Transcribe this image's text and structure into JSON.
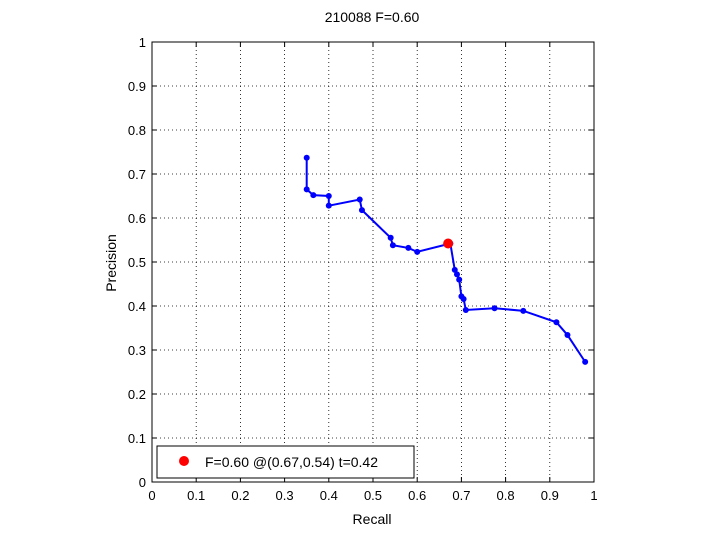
{
  "chart_data": {
    "type": "line",
    "title": "210088 F=0.60",
    "xlabel": "Recall",
    "ylabel": "Precision",
    "xlim": [
      0,
      1
    ],
    "ylim": [
      0,
      1
    ],
    "xticks": [
      "0",
      "0.1",
      "0.2",
      "0.3",
      "0.4",
      "0.5",
      "0.6",
      "0.7",
      "0.8",
      "0.9",
      "1"
    ],
    "yticks": [
      "0",
      "0.1",
      "0.2",
      "0.3",
      "0.4",
      "0.5",
      "0.6",
      "0.7",
      "0.8",
      "0.9",
      "1"
    ],
    "grid": true,
    "legend_position": "bottom-left",
    "series": [
      {
        "color": "#0000ff",
        "x": [
          0.35,
          0.35,
          0.365,
          0.4,
          0.4,
          0.47,
          0.475,
          0.54,
          0.545,
          0.58,
          0.6,
          0.675,
          0.685,
          0.69,
          0.695,
          0.7,
          0.705,
          0.71,
          0.775,
          0.84,
          0.915,
          0.94,
          0.98
        ],
        "y": [
          0.737,
          0.665,
          0.652,
          0.65,
          0.628,
          0.642,
          0.618,
          0.555,
          0.538,
          0.532,
          0.523,
          0.542,
          0.482,
          0.472,
          0.46,
          0.422,
          0.416,
          0.391,
          0.395,
          0.389,
          0.363,
          0.334,
          0.273
        ]
      }
    ],
    "best_point": {
      "x": 0.67,
      "y": 0.542,
      "color": "#ff0000",
      "legend": "F=0.60 @(0.67,0.54) t=0.42"
    }
  }
}
